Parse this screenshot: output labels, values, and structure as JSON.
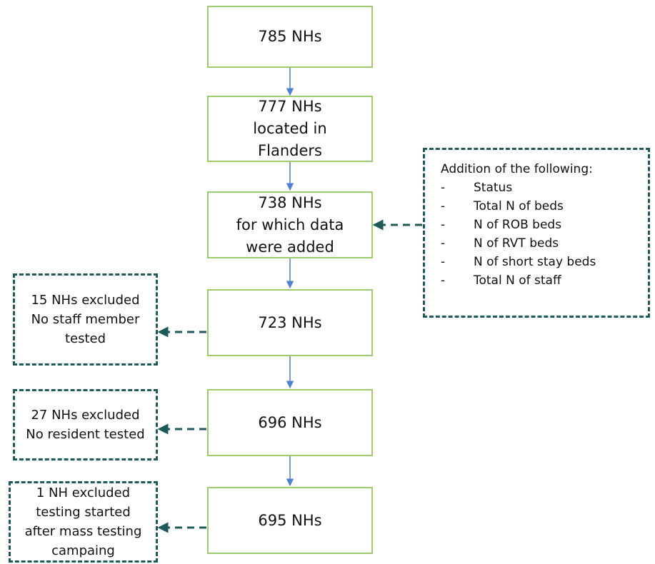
{
  "main_boxes": [
    {
      "text": "785 NHs"
    },
    {
      "text": "777 NHs\nlocated in\nFlanders"
    },
    {
      "text": "738 NHs\nfor which data\nwere added"
    },
    {
      "text": "723 NHs"
    },
    {
      "text": "696 NHs"
    },
    {
      "text": "695 NHs"
    }
  ],
  "exclusions": [
    {
      "text": "15 NHs excluded\nNo staff member\ntested"
    },
    {
      "text": "27 NHs excluded\nNo resident tested"
    },
    {
      "text": "1 NH excluded\ntesting started\nafter mass testing\ncampaing"
    }
  ],
  "addition_note": {
    "title": "Addition of the following:",
    "bullet": "-",
    "items": [
      "Status",
      "Total N of beds",
      "N of ROB beds",
      "N of RVT beds",
      "N of short stay beds",
      "Total N of staff"
    ]
  },
  "colors": {
    "box_border": "#9ccc6b",
    "flow_arrow": "#4f7fd6",
    "dashed": "#1f5a5a"
  }
}
